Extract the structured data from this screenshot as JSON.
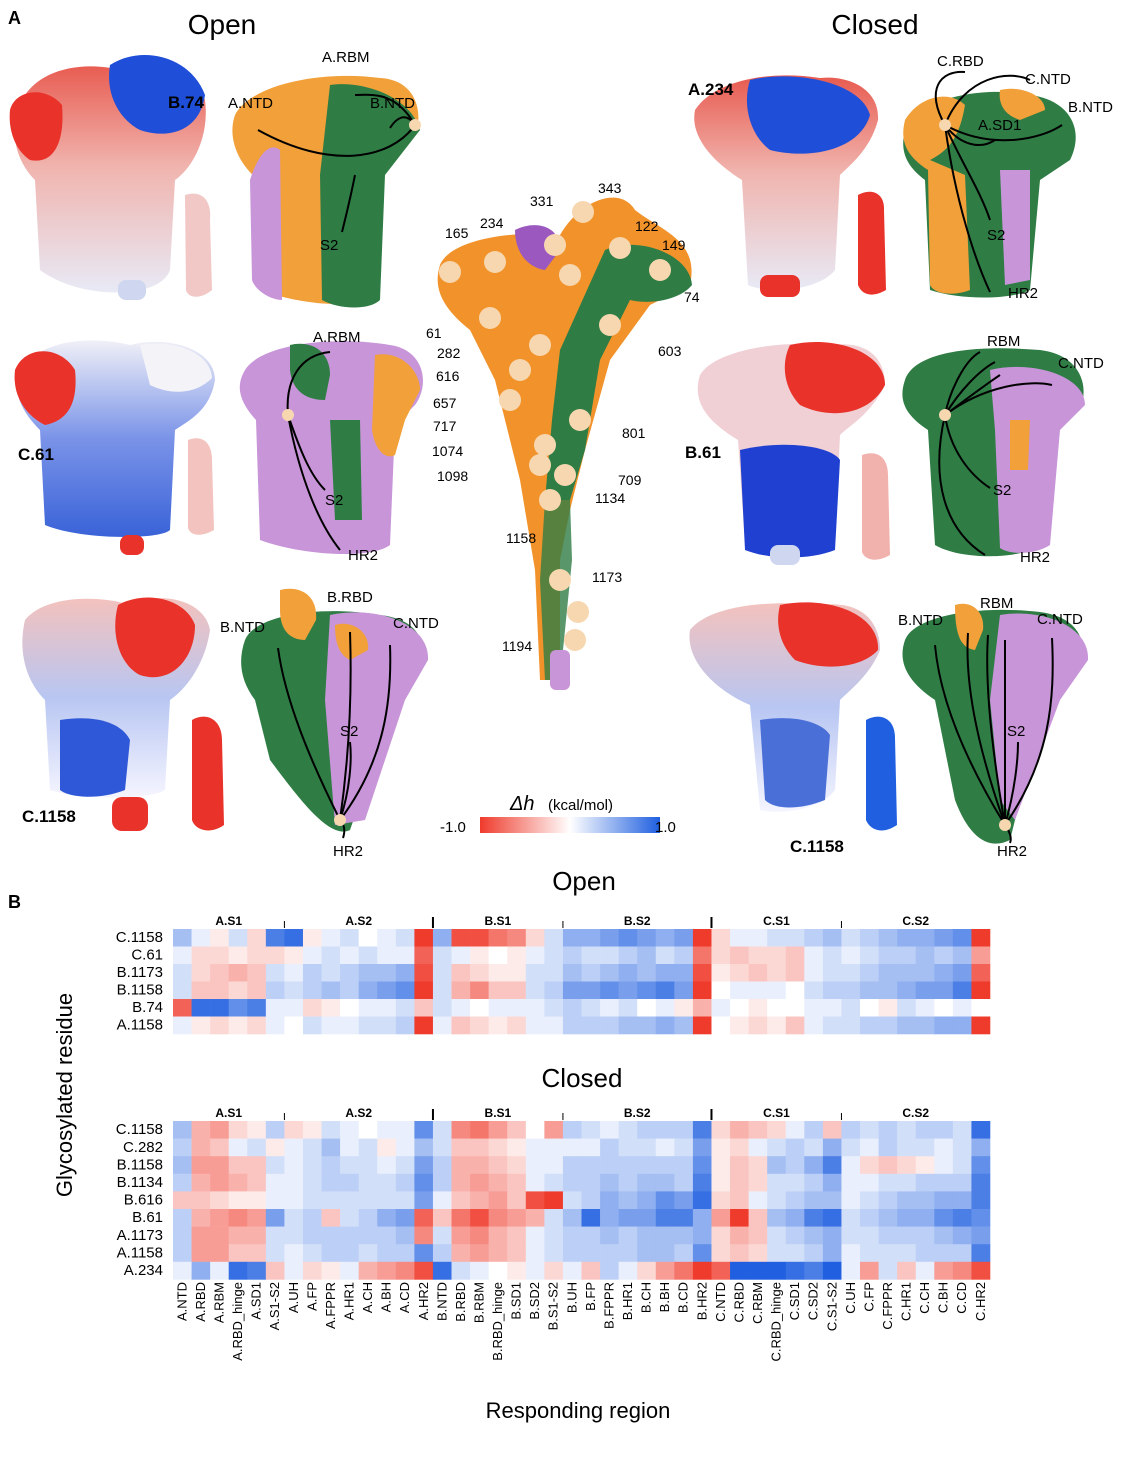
{
  "panelA": {
    "letter": "A",
    "open_title": "Open",
    "closed_title": "Closed",
    "open_rows": [
      {
        "residue": "B.74",
        "labels": [
          "A.RBM",
          "A.NTD",
          "B.NTD",
          "S2"
        ]
      },
      {
        "residue": "C.61",
        "labels": [
          "A.RBM",
          "S2",
          "HR2"
        ]
      },
      {
        "residue": "C.1158",
        "labels": [
          "B.NTD",
          "B.RBD",
          "C.NTD",
          "S2",
          "HR2"
        ]
      }
    ],
    "closed_rows": [
      {
        "residue": "A.234",
        "labels": [
          "C.RBD",
          "C.NTD",
          "B.NTD",
          "A.SD1",
          "S2",
          "HR2"
        ]
      },
      {
        "residue": "B.61",
        "labels": [
          "RBM",
          "C.NTD",
          "S2",
          "HR2"
        ]
      },
      {
        "residue": "C.1158",
        "labels": [
          "B.NTD",
          "RBM",
          "C.NTD",
          "S2",
          "HR2"
        ]
      }
    ],
    "center_residues": [
      "343",
      "331",
      "122",
      "149",
      "165",
      "234",
      "74",
      "61",
      "282",
      "603",
      "616",
      "657",
      "717",
      "801",
      "1074",
      "1098",
      "709",
      "1134",
      "1158",
      "1173",
      "1194"
    ],
    "colorbar": {
      "label_symbol": "Δh",
      "label_unit": "(kcal/mol)",
      "min": "-1.0",
      "max": "1.0"
    }
  },
  "panelB": {
    "letter": "B",
    "ylabel": "Glycosylated residue",
    "xlabel": "Responding region",
    "open_title": "Open",
    "closed_title": "Closed",
    "group_labels": [
      "A.S1",
      "A.S2",
      "B.S1",
      "B.S2",
      "C.S1",
      "C.S2"
    ]
  },
  "colors": {
    "chain_orange": "#f2a03a",
    "chain_green": "#2f7d45",
    "chain_purple": "#c895d8",
    "neg": "#ef3b2c",
    "pos": "#1f5fe0",
    "glycan": "#f7d7b0"
  },
  "chart_data": [
    {
      "type": "heatmap",
      "title": "Open",
      "xlabel": "Responding region",
      "ylabel": "Glycosylated residue",
      "colorbar_range": [
        -1.0,
        1.0
      ],
      "rows": [
        "C.1158",
        "C.61",
        "B.1173",
        "B.1158",
        "B.74",
        "A.1158"
      ],
      "columns": [
        "A.NTD",
        "A.RBD",
        "A.RBM",
        "A.RBD_hinge",
        "A.SD1",
        "A.S1-S2",
        "A.UH",
        "A.FP",
        "A.FPPR",
        "A.HR1",
        "A.CH",
        "A.BH",
        "A.CD",
        "A.HR2",
        "B.NTD",
        "B.RBD",
        "B.RBM",
        "B.RBD_hinge",
        "B.SD1",
        "B.SD2",
        "B.S1-S2",
        "B.UH",
        "B.FP",
        "B.FPPR",
        "B.HR1",
        "B.CH",
        "B.BH",
        "B.CD",
        "B.HR2",
        "C.NTD",
        "C.RBD",
        "C.RBM",
        "C.RBD_hinge",
        "C.SD1",
        "C.SD2",
        "C.S1-S2",
        "C.UH",
        "C.FP",
        "C.FPPR",
        "C.HR1",
        "C.CH",
        "C.BH",
        "C.CD",
        "C.HR2"
      ],
      "values": [
        [
          0.4,
          0.1,
          -0.1,
          0.2,
          -0.2,
          0.8,
          0.9,
          -0.1,
          0.1,
          0.2,
          0.0,
          0.1,
          0.2,
          -1.0,
          0.5,
          -0.9,
          -0.9,
          -0.7,
          -0.6,
          -0.2,
          0.2,
          0.5,
          0.5,
          0.6,
          0.7,
          0.6,
          0.5,
          0.6,
          -1.0,
          -0.2,
          0.1,
          0.1,
          0.2,
          0.2,
          0.3,
          0.4,
          0.2,
          0.3,
          0.4,
          0.5,
          0.5,
          0.6,
          0.7,
          -1.0
        ],
        [
          0.1,
          -0.2,
          -0.2,
          -0.1,
          -0.2,
          -0.2,
          -0.1,
          0.1,
          0.2,
          0.1,
          0.2,
          0.1,
          0.1,
          -0.8,
          0.2,
          0.1,
          -0.1,
          0.0,
          -0.1,
          0.1,
          0.2,
          0.3,
          0.2,
          0.2,
          0.3,
          0.4,
          0.2,
          0.3,
          -0.7,
          -0.2,
          -0.3,
          -0.2,
          -0.2,
          -0.3,
          0.1,
          0.2,
          0.1,
          0.2,
          0.3,
          0.3,
          0.4,
          0.3,
          0.4,
          -0.5
        ],
        [
          0.2,
          -0.2,
          -0.3,
          -0.4,
          -0.3,
          0.2,
          0.1,
          0.3,
          0.2,
          0.3,
          0.4,
          0.4,
          0.5,
          -0.9,
          0.2,
          -0.3,
          -0.2,
          -0.1,
          -0.1,
          0.2,
          0.2,
          0.4,
          0.3,
          0.4,
          0.5,
          0.4,
          0.5,
          0.5,
          -0.9,
          -0.1,
          -0.2,
          -0.3,
          -0.2,
          -0.3,
          0.1,
          0.2,
          0.2,
          0.3,
          0.4,
          0.4,
          0.4,
          0.5,
          0.6,
          -0.8
        ],
        [
          0.2,
          -0.3,
          -0.3,
          -0.2,
          -0.3,
          0.3,
          0.2,
          0.3,
          0.4,
          0.3,
          0.5,
          0.6,
          0.7,
          -1.0,
          0.2,
          -0.4,
          -0.6,
          -0.3,
          -0.3,
          0.2,
          0.3,
          0.6,
          0.6,
          0.7,
          0.6,
          0.7,
          0.8,
          0.6,
          -1.0,
          0.0,
          0.1,
          0.1,
          0.1,
          0.0,
          0.2,
          0.3,
          0.3,
          0.4,
          0.4,
          0.5,
          0.6,
          0.6,
          0.8,
          -1.0
        ],
        [
          -0.8,
          0.9,
          0.9,
          0.7,
          0.8,
          0.1,
          0.1,
          -0.2,
          -0.1,
          0.0,
          0.1,
          0.1,
          0.2,
          -0.3,
          0.2,
          0.1,
          0.0,
          0.1,
          0.1,
          0.1,
          0.2,
          0.3,
          0.2,
          0.1,
          0.2,
          0.0,
          0.1,
          -0.1,
          -0.4,
          0.1,
          0.0,
          -0.1,
          0.0,
          0.0,
          0.1,
          0.1,
          0.2,
          0.0,
          -0.1,
          0.2,
          0.1,
          0.0,
          0.1,
          0.0
        ],
        [
          0.1,
          -0.1,
          -0.2,
          -0.1,
          -0.2,
          0.1,
          0.0,
          0.2,
          0.1,
          0.1,
          0.2,
          0.2,
          0.3,
          -1.0,
          0.1,
          -0.3,
          -0.2,
          -0.1,
          -0.2,
          0.1,
          0.1,
          0.3,
          0.3,
          0.3,
          0.4,
          0.4,
          0.5,
          0.4,
          -1.0,
          0.0,
          -0.1,
          -0.2,
          -0.1,
          -0.3,
          0.1,
          0.2,
          0.2,
          0.3,
          0.3,
          0.4,
          0.4,
          0.5,
          0.5,
          -1.0
        ]
      ]
    },
    {
      "type": "heatmap",
      "title": "Closed",
      "xlabel": "Responding region",
      "ylabel": "Glycosylated residue",
      "colorbar_range": [
        -1.0,
        1.0
      ],
      "rows": [
        "C.1158",
        "C.282",
        "B.1158",
        "B.1134",
        "B.616",
        "B.61",
        "A.1173",
        "A.1158",
        "A.234"
      ],
      "columns": [
        "A.NTD",
        "A.RBD",
        "A.RBM",
        "A.RBD_hinge",
        "A.SD1",
        "A.S1-S2",
        "A.UH",
        "A.FP",
        "A.FPPR",
        "A.HR1",
        "A.CH",
        "A.BH",
        "A.CD",
        "A.HR2",
        "B.NTD",
        "B.RBD",
        "B.RBM",
        "B.RBD_hinge",
        "B.SD1",
        "B.SD2",
        "B.S1-S2",
        "B.UH",
        "B.FP",
        "B.FPPR",
        "B.HR1",
        "B.CH",
        "B.BH",
        "B.CD",
        "B.HR2",
        "C.NTD",
        "C.RBD",
        "C.RBM",
        "C.RBD_hinge",
        "C.SD1",
        "C.SD2",
        "C.S1-S2",
        "C.UH",
        "C.FP",
        "C.FPPR",
        "C.HR1",
        "C.CH",
        "C.BH",
        "C.CD",
        "C.HR2"
      ],
      "values": [
        [
          0.4,
          -0.4,
          -0.5,
          -0.2,
          -0.1,
          0.3,
          -0.2,
          -0.1,
          0.2,
          0.1,
          0.0,
          0.1,
          0.1,
          0.7,
          0.2,
          -0.6,
          -0.7,
          -0.5,
          -0.3,
          0.0,
          -0.5,
          0.3,
          0.2,
          0.1,
          0.2,
          0.3,
          0.3,
          0.3,
          0.8,
          -0.2,
          -0.4,
          -0.3,
          -0.2,
          0.1,
          0.3,
          -0.3,
          0.3,
          0.2,
          0.3,
          0.2,
          0.3,
          0.3,
          0.2,
          0.9
        ],
        [
          0.3,
          -0.4,
          -0.3,
          0.1,
          0.2,
          -0.1,
          0.1,
          0.2,
          0.4,
          0.1,
          0.2,
          -0.1,
          0.1,
          0.4,
          0.2,
          -0.3,
          -0.3,
          -0.2,
          -0.1,
          0.1,
          0.1,
          0.1,
          0.1,
          0.3,
          0.2,
          0.2,
          0.1,
          0.2,
          0.6,
          -0.1,
          -0.2,
          0.1,
          0.2,
          0.3,
          0.2,
          0.5,
          0.2,
          0.1,
          0.3,
          0.2,
          0.2,
          0.1,
          0.2,
          0.5
        ],
        [
          0.4,
          -0.5,
          -0.5,
          -0.3,
          -0.3,
          0.2,
          0.1,
          0.2,
          0.3,
          0.2,
          0.2,
          0.1,
          0.2,
          0.6,
          0.3,
          -0.4,
          -0.4,
          -0.3,
          -0.2,
          0.1,
          0.1,
          0.3,
          0.3,
          0.3,
          0.3,
          0.3,
          0.3,
          0.3,
          0.7,
          -0.1,
          -0.3,
          -0.2,
          0.4,
          0.3,
          0.5,
          0.8,
          0.1,
          -0.2,
          -0.3,
          -0.2,
          -0.1,
          0.1,
          0.2,
          0.7
        ],
        [
          0.3,
          -0.4,
          -0.5,
          -0.4,
          -0.3,
          0.1,
          0.1,
          0.2,
          0.3,
          0.3,
          0.2,
          0.2,
          0.3,
          0.7,
          0.3,
          -0.4,
          -0.5,
          -0.4,
          -0.3,
          0.1,
          0.2,
          0.3,
          0.3,
          0.4,
          0.3,
          0.4,
          0.4,
          0.3,
          0.8,
          -0.1,
          -0.3,
          -0.2,
          0.2,
          0.2,
          0.3,
          0.5,
          0.1,
          0.1,
          0.2,
          0.2,
          0.3,
          0.3,
          0.3,
          0.8
        ],
        [
          -0.3,
          -0.3,
          -0.2,
          -0.1,
          -0.1,
          0.1,
          0.1,
          0.2,
          0.2,
          0.2,
          0.2,
          0.2,
          0.2,
          0.6,
          0.1,
          -0.3,
          -0.4,
          -0.5,
          -0.3,
          -0.9,
          -1.0,
          0.2,
          0.3,
          0.5,
          0.4,
          0.5,
          0.7,
          0.6,
          0.9,
          -0.2,
          -0.3,
          0.1,
          0.2,
          0.3,
          0.4,
          0.4,
          0.1,
          0.2,
          0.3,
          0.4,
          0.4,
          0.5,
          0.5,
          0.8
        ],
        [
          0.3,
          -0.4,
          -0.5,
          -0.6,
          -0.5,
          0.6,
          0.2,
          0.3,
          -0.3,
          0.2,
          0.3,
          0.5,
          0.6,
          -0.8,
          -0.3,
          -0.7,
          -0.9,
          -0.6,
          -0.5,
          -0.4,
          0.2,
          0.4,
          0.9,
          0.5,
          0.6,
          0.6,
          0.8,
          0.8,
          0.5,
          -0.5,
          -1.0,
          -0.3,
          0.4,
          0.5,
          0.8,
          0.9,
          0.2,
          0.3,
          0.4,
          0.5,
          0.5,
          0.7,
          0.8,
          0.7
        ],
        [
          0.3,
          -0.5,
          -0.5,
          -0.4,
          -0.4,
          0.2,
          0.2,
          0.3,
          0.3,
          0.3,
          0.3,
          0.3,
          0.4,
          -0.6,
          0.2,
          -0.5,
          -0.6,
          -0.4,
          -0.3,
          0.1,
          0.2,
          0.3,
          0.3,
          0.4,
          0.3,
          0.4,
          0.4,
          0.4,
          0.5,
          -0.2,
          -0.4,
          -0.3,
          0.2,
          0.3,
          0.4,
          0.5,
          0.2,
          0.2,
          0.3,
          0.3,
          0.3,
          0.4,
          0.5,
          0.6
        ],
        [
          0.3,
          -0.5,
          -0.5,
          -0.3,
          -0.3,
          0.2,
          0.1,
          0.2,
          0.3,
          0.3,
          0.2,
          0.3,
          0.3,
          0.7,
          0.3,
          -0.4,
          -0.5,
          -0.4,
          -0.3,
          0.1,
          0.2,
          0.3,
          0.3,
          0.3,
          0.3,
          0.4,
          0.4,
          0.3,
          0.7,
          -0.2,
          -0.3,
          -0.2,
          0.2,
          0.2,
          0.3,
          0.5,
          0.1,
          0.2,
          0.2,
          0.2,
          0.3,
          0.3,
          0.3,
          0.8
        ],
        [
          0.1,
          0.5,
          0.1,
          0.9,
          0.8,
          -0.3,
          0.1,
          -0.2,
          -0.1,
          0.1,
          -0.4,
          -0.5,
          -0.6,
          -0.9,
          0.9,
          0.2,
          0.1,
          0.0,
          -0.1,
          0.1,
          -0.2,
          0.1,
          -0.3,
          0.3,
          0.1,
          -0.2,
          -0.5,
          -0.7,
          -1.0,
          -0.8,
          1.0,
          1.0,
          1.0,
          0.9,
          0.8,
          1.0,
          0.1,
          -0.5,
          0.2,
          -0.3,
          0.1,
          -0.5,
          -0.6,
          -0.9
        ]
      ]
    }
  ]
}
